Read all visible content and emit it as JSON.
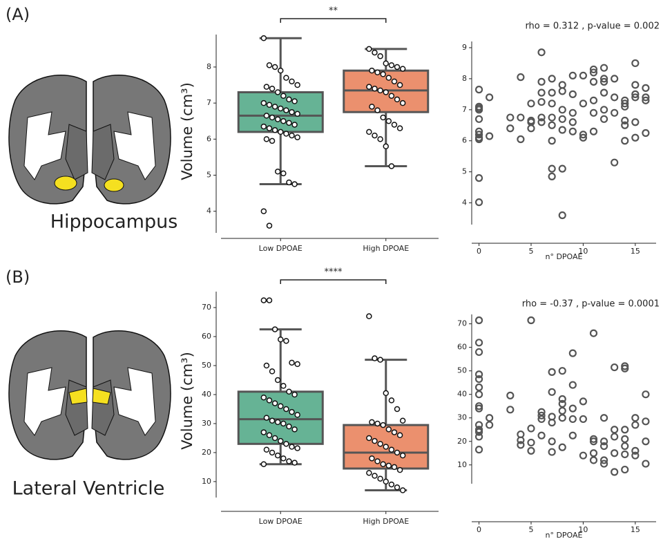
{
  "panels": [
    {
      "label": "(A)",
      "region": "Hippocampus"
    },
    {
      "label": "(B)",
      "region": "Lateral Ventricle"
    }
  ],
  "chart_data": [
    {
      "type": "box",
      "ylabel": "Volume (cm³)",
      "categories": [
        "Low DPOAE",
        "High DPOAE"
      ],
      "colors": [
        "#66b395",
        "#eb906e"
      ],
      "boxes": [
        {
          "whislo": 4.75,
          "q1": 6.2,
          "med": 6.65,
          "q3": 7.3,
          "whishi": 8.8
        },
        {
          "whislo": 5.25,
          "q1": 6.75,
          "med": 7.35,
          "q3": 7.9,
          "whishi": 8.5
        }
      ],
      "points": [
        [
          8.8,
          8.05,
          8.0,
          7.9,
          7.7,
          7.6,
          7.5,
          7.45,
          7.4,
          7.3,
          7.2,
          7.1,
          7.05,
          7.0,
          6.95,
          6.9,
          6.85,
          6.8,
          6.75,
          6.7,
          6.65,
          6.6,
          6.55,
          6.5,
          6.45,
          6.4,
          6.35,
          6.3,
          6.25,
          6.2,
          6.15,
          6.1,
          6.05,
          6.0,
          5.95,
          5.1,
          5.05,
          4.8,
          4.75,
          4.0,
          3.6
        ],
        [
          8.5,
          8.4,
          8.3,
          8.1,
          8.05,
          8.0,
          7.95,
          7.9,
          7.85,
          7.8,
          7.7,
          7.6,
          7.5,
          7.45,
          7.4,
          7.35,
          7.3,
          7.2,
          7.1,
          7.0,
          6.9,
          6.8,
          6.6,
          6.5,
          6.4,
          6.3,
          6.2,
          6.1,
          6.0,
          5.8,
          5.25
        ]
      ],
      "ylim": [
        3.4,
        8.9
      ],
      "yticks": [
        4,
        5,
        6,
        7,
        8
      ],
      "significance": "**"
    },
    {
      "type": "scatter",
      "title": "rho = 0.312 , p-value = 0.002",
      "xlabel": "n° DPOAE",
      "color": "#555555",
      "x": [
        0,
        0,
        0,
        0,
        0,
        0,
        0,
        0,
        0,
        0,
        0,
        1,
        1,
        3,
        3,
        4,
        4,
        4,
        5,
        5,
        5,
        5,
        6,
        6,
        6,
        6,
        6,
        6,
        7,
        7,
        7,
        7,
        7,
        7,
        7,
        7,
        8,
        8,
        8,
        8,
        8,
        8,
        8,
        9,
        9,
        9,
        9,
        9,
        10,
        10,
        10,
        10,
        11,
        11,
        11,
        11,
        11,
        11,
        12,
        12,
        12,
        12,
        12,
        12,
        13,
        13,
        13,
        13,
        14,
        14,
        14,
        14,
        14,
        14,
        15,
        15,
        15,
        15,
        15,
        15,
        16,
        16,
        16,
        16
      ],
      "values": [
        7.65,
        7.1,
        7.05,
        7.0,
        6.7,
        6.3,
        6.2,
        6.1,
        6.05,
        4.8,
        4.02,
        7.4,
        6.15,
        6.75,
        6.4,
        8.05,
        6.75,
        6.05,
        7.2,
        6.65,
        6.6,
        6.4,
        8.85,
        7.9,
        7.55,
        7.25,
        6.75,
        6.6,
        8.0,
        7.55,
        7.2,
        6.75,
        6.5,
        6.0,
        5.1,
        4.85,
        7.8,
        7.6,
        7.0,
        6.7,
        6.35,
        5.1,
        3.6,
        8.1,
        7.5,
        6.9,
        6.6,
        6.3,
        8.1,
        7.2,
        6.2,
        6.1,
        8.3,
        8.2,
        7.9,
        7.3,
        6.9,
        6.3,
        8.35,
        8.0,
        7.9,
        7.55,
        7.0,
        6.7,
        8.0,
        7.4,
        6.9,
        5.3,
        7.3,
        7.2,
        7.1,
        6.65,
        6.5,
        6.0,
        8.5,
        7.8,
        7.5,
        7.4,
        6.6,
        6.1,
        7.7,
        7.4,
        7.3,
        6.25
      ],
      "xlim": [
        -0.7,
        17
      ],
      "xticks": [
        0,
        5,
        10,
        15
      ],
      "ylim": [
        3.3,
        9.2
      ],
      "yticks": [
        4,
        5,
        6,
        7,
        8,
        9
      ]
    },
    {
      "type": "box",
      "ylabel": "Volume (cm³)",
      "categories": [
        "Low DPOAE",
        "High DPOAE"
      ],
      "colors": [
        "#66b395",
        "#eb906e"
      ],
      "boxes": [
        {
          "whislo": 16,
          "q1": 23,
          "med": 31.5,
          "q3": 41,
          "whishi": 62.5
        },
        {
          "whislo": 7,
          "q1": 14.5,
          "med": 20,
          "q3": 29.5,
          "whishi": 52
        }
      ],
      "points": [
        [
          72.5,
          72.5,
          62.5,
          59,
          58.5,
          51,
          50.5,
          50,
          48,
          45,
          43,
          41,
          40,
          39,
          38,
          37,
          36,
          35,
          34,
          33,
          32,
          31,
          30.5,
          30,
          29,
          28,
          27,
          26,
          25,
          24,
          23,
          22,
          21.5,
          21,
          20,
          19,
          18,
          17,
          16.5,
          16
        ],
        [
          67,
          52.5,
          52,
          40.5,
          38,
          35,
          31,
          30.5,
          30,
          29.5,
          28,
          27,
          26,
          25,
          24,
          23,
          22,
          21,
          20,
          19,
          18,
          17,
          16,
          15.5,
          15,
          14,
          13,
          12,
          11,
          10,
          9,
          8,
          7
        ]
      ],
      "ylim": [
        4.5,
        75.5
      ],
      "yticks": [
        10,
        20,
        30,
        40,
        50,
        60,
        70
      ],
      "significance": "****"
    },
    {
      "type": "scatter",
      "title": "rho = -0.37 , p-value = 0.0001",
      "xlabel": "n° DPOAE",
      "color": "#555555",
      "x": [
        0,
        0,
        0,
        0,
        0,
        0,
        0,
        0,
        0,
        0,
        0,
        0,
        0,
        0,
        1,
        1,
        3,
        3,
        4,
        4,
        4,
        5,
        5,
        5,
        5,
        6,
        6,
        6,
        6,
        7,
        7,
        7,
        7,
        7,
        7,
        8,
        8,
        8,
        8,
        8,
        8,
        9,
        9,
        9,
        9,
        9,
        10,
        10,
        10,
        11,
        11,
        11,
        11,
        11,
        12,
        12,
        12,
        12,
        12,
        13,
        13,
        13,
        13,
        13,
        14,
        14,
        14,
        14,
        14,
        14,
        14,
        15,
        15,
        15,
        15,
        16,
        16,
        16,
        16
      ],
      "values": [
        71.5,
        62,
        58,
        48.5,
        46.5,
        43,
        40,
        35,
        34,
        27,
        25,
        24,
        22,
        16.5,
        30,
        27,
        39.5,
        33.5,
        23,
        20.5,
        18.5,
        71.5,
        25.5,
        19.5,
        16,
        32.5,
        31,
        29.5,
        22.5,
        49.5,
        41,
        30.5,
        28,
        20,
        15.5,
        50,
        38,
        36,
        33,
        30,
        17.5,
        57.5,
        44,
        34,
        29.5,
        22.5,
        37,
        29.5,
        14,
        66,
        21,
        20,
        15,
        12,
        30,
        20,
        18,
        12,
        10.5,
        51.5,
        25,
        22,
        15,
        7,
        52,
        51,
        25,
        21,
        18,
        14.5,
        8,
        30,
        27,
        16,
        14,
        40,
        28.5,
        20,
        10.5
      ],
      "xlim": [
        -0.7,
        17
      ],
      "xticks": [
        0,
        5,
        10,
        15
      ],
      "ylim": [
        2,
        74
      ],
      "yticks": [
        10,
        20,
        30,
        40,
        50,
        60,
        70
      ]
    }
  ]
}
